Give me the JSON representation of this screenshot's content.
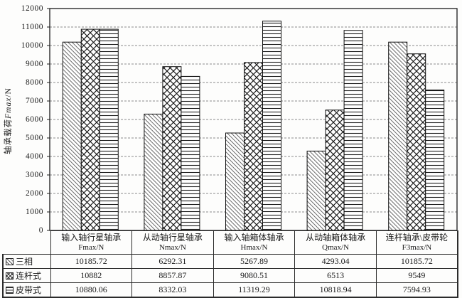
{
  "page": {
    "background": "#fdfdfc",
    "line_color": "#1a1a1a",
    "grid_color": "#8c8c8c"
  },
  "y_axis": {
    "title_cn": "轴承载荷",
    "title_var": "Fmax",
    "title_unit": "/N"
  },
  "chart_data": {
    "type": "bar",
    "title": "",
    "xlabel": "",
    "ylabel": "轴承载荷 Fmax/N",
    "ylim": [
      0,
      12000
    ],
    "ytick_step": 1000,
    "grid": "horizontal",
    "legend_position": "table-left",
    "categories": [
      "输入轴行星轴承",
      "从动轴行星轴承",
      "输入轴箱体轴承",
      "从动轴箱体轴承",
      "连杆轴承\\皮带轮"
    ],
    "category_vars": [
      "Fmax/N",
      "Nmax/N",
      "Hmax/N",
      "Qmax/N",
      "F3max/N"
    ],
    "series": [
      {
        "name": "三相",
        "pattern": "light-downward-diagonal",
        "values": [
          10185.72,
          6292.31,
          5267.89,
          4293.04,
          10185.72
        ]
      },
      {
        "name": "连杆式",
        "pattern": "diamond-crosshatch",
        "values": [
          10882,
          8857.87,
          9080.51,
          6513,
          9549
        ]
      },
      {
        "name": "皮带式",
        "pattern": "horizontal-lines",
        "values": [
          10880.06,
          8332.03,
          11319.29,
          10818.94,
          7594.93
        ]
      }
    ]
  }
}
